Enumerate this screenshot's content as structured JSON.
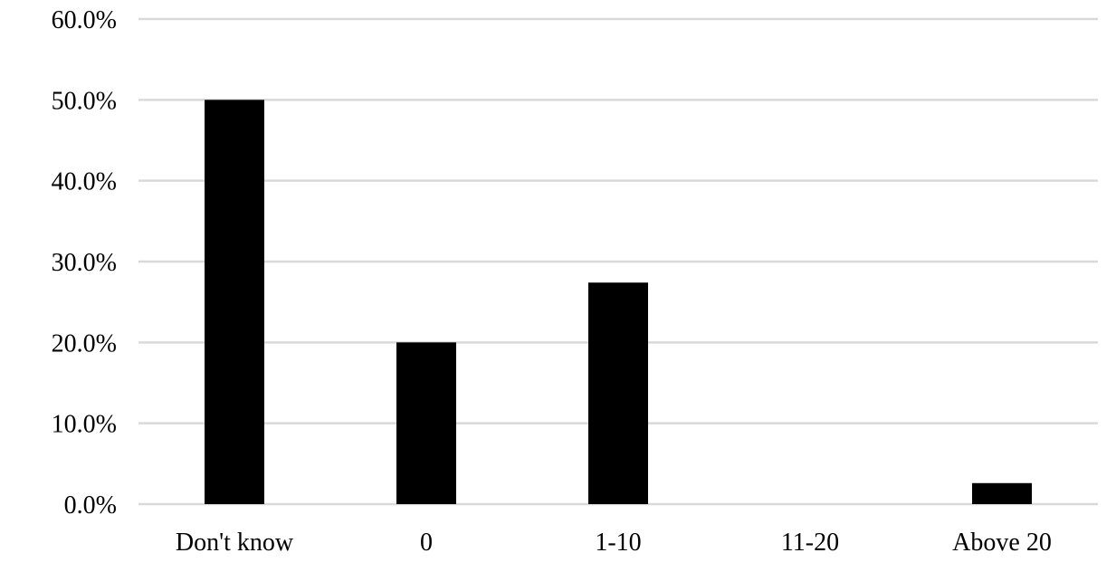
{
  "chart_data": {
    "type": "bar",
    "categories": [
      "Don't know",
      "0",
      "1-10",
      "11-20",
      "Above 20"
    ],
    "values": [
      50.0,
      20.0,
      27.4,
      0.0,
      2.6
    ],
    "ylim": [
      0,
      60
    ],
    "yticks": [
      "0.0%",
      "10.0%",
      "20.0%",
      "30.0%",
      "40.0%",
      "50.0%",
      "60.0%"
    ],
    "grid": true,
    "legend": "none",
    "bar_color": "#000000",
    "grid_color": "#d9d9d9"
  }
}
